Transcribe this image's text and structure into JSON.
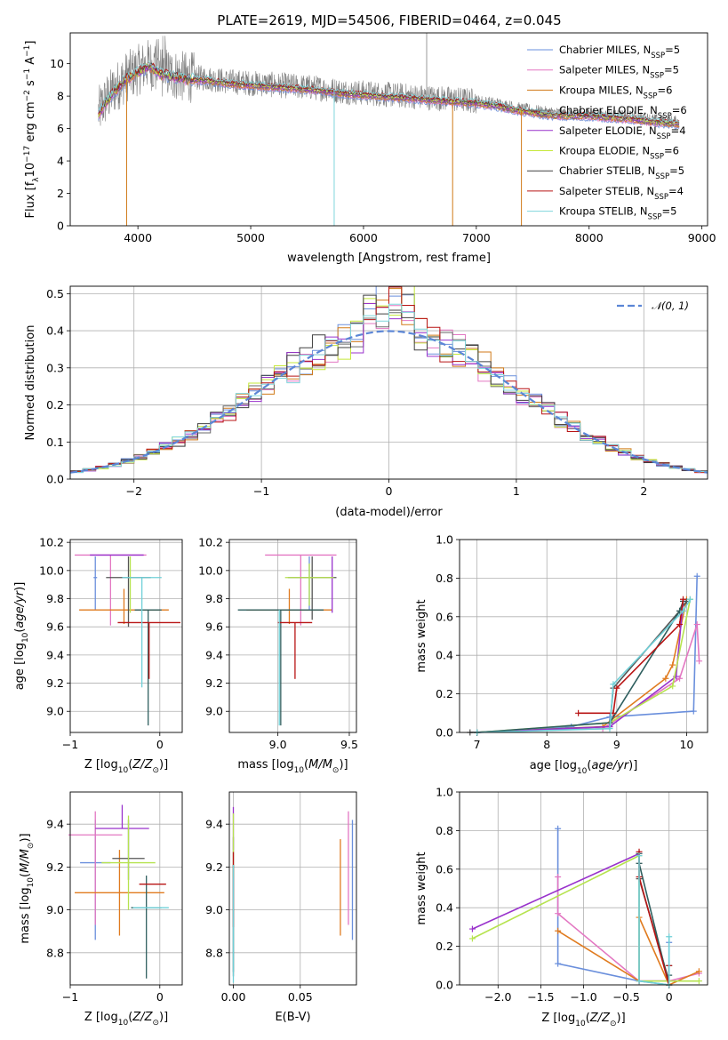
{
  "figure": {
    "title": "PLATE=2619, MJD=54506, FIBERID=0464, z=0.045"
  },
  "series_styles": [
    {
      "name": "Chabrier MILES",
      "nssp": "5",
      "color": "#6a8fdc",
      "panel_color": "#6a8fdc"
    },
    {
      "name": "Salpeter MILES",
      "nssp": "5",
      "color": "#e377c2",
      "panel_color": "#e377c2"
    },
    {
      "name": "Kroupa MILES",
      "nssp": "6",
      "color": "#d07a18",
      "panel_color": "#e07b1f"
    },
    {
      "name": "Chabrier ELODIE",
      "nssp": "6",
      "color": "#6b6b6b",
      "panel_color": "#555555"
    },
    {
      "name": "Salpeter ELODIE",
      "nssp": "4",
      "color": "#9932cc",
      "panel_color": "#9932cc"
    },
    {
      "name": "Kroupa ELODIE",
      "nssp": "6",
      "color": "#c5e83a",
      "panel_color": "#b6e34f"
    },
    {
      "name": "Chabrier STELIB",
      "nssp": "5",
      "color": "#404040",
      "panel_color": "#2f5f5f"
    },
    {
      "name": "Salpeter STELIB",
      "nssp": "4",
      "color": "#b81414",
      "panel_color": "#b81414"
    },
    {
      "name": "Kroupa STELIB",
      "nssp": "5",
      "color": "#7fd6dc",
      "panel_color": "#6fd0d8"
    }
  ],
  "chart_data": [
    {
      "id": "spectrum",
      "type": "line",
      "title": "PLATE=2619, MJD=54506, FIBERID=0464, z=0.045",
      "xlabel": "wavelength [Angstrom, rest frame]",
      "ylabel": "Flux [f_λ 10^-17 erg cm^-2 s^-1 A^-1]",
      "xlim": [
        3400,
        9050
      ],
      "ylim": [
        0,
        11.9
      ],
      "xticks": [
        4000,
        5000,
        6000,
        7000,
        8000,
        9000
      ],
      "yticks": [
        0,
        2,
        4,
        6,
        8,
        10
      ],
      "grid": false,
      "legend": "upper right",
      "data_flux_envelope": {
        "x": [
          3650,
          3700,
          3800,
          3900,
          4000,
          4100,
          4200,
          4400,
          4600,
          4800,
          5000,
          5200,
          5400,
          5600,
          5800,
          6000,
          6200,
          6400,
          6600,
          6800,
          7000,
          7200,
          7400,
          7600,
          7800,
          8000,
          8200,
          8400,
          8600,
          8800
        ],
        "y": [
          7.0,
          7.6,
          8.5,
          9.2,
          9.6,
          10.0,
          9.5,
          9.2,
          9.1,
          8.9,
          8.8,
          8.7,
          8.6,
          8.5,
          8.3,
          8.2,
          8.1,
          8.0,
          7.9,
          7.8,
          7.7,
          7.5,
          7.2,
          7.0,
          6.9,
          6.9,
          6.8,
          6.7,
          6.5,
          6.4
        ]
      },
      "spikes": [
        {
          "x": 3900,
          "y": 0
        },
        {
          "x": 5740,
          "y": 0
        },
        {
          "x": 6790,
          "y": 0
        },
        {
          "x": 7400,
          "y": 0
        },
        {
          "x": 6560,
          "y": 11.9
        }
      ]
    },
    {
      "id": "residual-histogram",
      "type": "histogram",
      "xlabel": "(data-model)/error",
      "ylabel": "Normed distribution",
      "xlim": [
        -2.5,
        2.5
      ],
      "ylim": [
        0,
        0.52
      ],
      "xticks": [
        -2,
        -1,
        0,
        1,
        2
      ],
      "yticks": [
        0.0,
        0.1,
        0.2,
        0.3,
        0.4,
        0.5
      ],
      "grid": true,
      "bin_width": 0.1,
      "reference_curve": {
        "label": "𝒩(0, 1)",
        "mean": 0,
        "sigma": 1,
        "style": "dashed",
        "color": "#5b86d6"
      }
    },
    {
      "id": "age-vs-Z",
      "type": "errorbar",
      "xlabel": "Z [log10(Z/Z⊙)]",
      "ylabel": "age [log10(age/yr)]",
      "xlim": [
        -1.0,
        0.25
      ],
      "ylim": [
        8.85,
        10.22
      ],
      "xticks": [
        -1,
        0
      ],
      "yticks": [
        9.0,
        9.2,
        9.4,
        9.6,
        9.8,
        10.0,
        10.2
      ],
      "grid": true,
      "points": [
        {
          "series": 0,
          "x": -0.72,
          "y": 9.95,
          "xerr": 0.02,
          "yerr_lo": 0.23,
          "yerr_hi": 0.15
        },
        {
          "series": 1,
          "x": -0.55,
          "y": 10.11,
          "xerr": 0.4,
          "yerr_lo": 0.5,
          "yerr_hi": 0.0
        },
        {
          "series": 2,
          "x": -0.4,
          "y": 9.72,
          "xerr": 0.5,
          "yerr_lo": 0.1,
          "yerr_hi": 0.15
        },
        {
          "series": 3,
          "x": -0.35,
          "y": 9.95,
          "xerr": 0.25,
          "yerr_lo": 0.35,
          "yerr_hi": 0.15
        },
        {
          "series": 4,
          "x": -0.48,
          "y": 10.11,
          "xerr": 0.3,
          "yerr_lo": 0.0,
          "yerr_hi": 0.0
        },
        {
          "series": 5,
          "x": -0.33,
          "y": 9.95,
          "xerr": 0.0,
          "yerr_lo": 0.25,
          "yerr_hi": 0.15
        },
        {
          "series": 6,
          "x": -0.13,
          "y": 9.72,
          "xerr": 0.15,
          "yerr_lo": 0.82,
          "yerr_hi": 0.0
        },
        {
          "series": 7,
          "x": -0.12,
          "y": 9.63,
          "xerr": 0.35,
          "yerr_lo": 0.4,
          "yerr_hi": 0.0
        },
        {
          "series": 8,
          "x": -0.2,
          "y": 9.95,
          "xerr": 0.22,
          "yerr_lo": 0.78,
          "yerr_hi": 0.0
        }
      ]
    },
    {
      "id": "age-vs-mass",
      "type": "errorbar",
      "xlabel": "mass [log10(M/M⊙)]",
      "ylabel": "",
      "xlim": [
        8.66,
        9.55
      ],
      "ylim": [
        8.85,
        10.22
      ],
      "xticks": [
        9.0,
        9.5
      ],
      "yticks": [
        9.0,
        9.2,
        9.4,
        9.6,
        9.8,
        10.0,
        10.2
      ],
      "grid": true,
      "points": [
        {
          "series": 0,
          "x": 9.22,
          "y": 9.95,
          "xerr": 0.0,
          "yerr_lo": 0.23,
          "yerr_hi": 0.15
        },
        {
          "series": 1,
          "x": 9.16,
          "y": 10.11,
          "xerr": 0.25,
          "yerr_lo": 0.5,
          "yerr_hi": 0.0
        },
        {
          "series": 2,
          "x": 9.08,
          "y": 9.72,
          "xerr": 0.3,
          "yerr_lo": 0.1,
          "yerr_hi": 0.15
        },
        {
          "series": 3,
          "x": 9.24,
          "y": 9.95,
          "xerr": 0.17,
          "yerr_lo": 0.3,
          "yerr_hi": 0.15
        },
        {
          "series": 4,
          "x": 9.38,
          "y": 9.9,
          "xerr": 0.0,
          "yerr_lo": 0.2,
          "yerr_hi": 0.2
        },
        {
          "series": 5,
          "x": 9.22,
          "y": 9.95,
          "xerr": 0.17,
          "yerr_lo": 0.2,
          "yerr_hi": 0.1
        },
        {
          "series": 6,
          "x": 9.02,
          "y": 9.72,
          "xerr": 0.3,
          "yerr_lo": 0.82,
          "yerr_hi": 0.0
        },
        {
          "series": 7,
          "x": 9.12,
          "y": 9.63,
          "xerr": 0.12,
          "yerr_lo": 0.4,
          "yerr_hi": 0.0
        },
        {
          "series": 8,
          "x": 9.01,
          "y": 9.72,
          "xerr": 0.0,
          "yerr_lo": 0.82,
          "yerr_hi": 0.0
        }
      ]
    },
    {
      "id": "mass-weight-vs-age",
      "type": "line",
      "xlabel": "age [log10(age/yr)]",
      "ylabel": "mass weight",
      "xlim": [
        6.75,
        10.3
      ],
      "ylim": [
        0,
        1.0
      ],
      "xticks": [
        7,
        8,
        9,
        10
      ],
      "yticks": [
        0.0,
        0.2,
        0.4,
        0.6,
        0.8,
        1.0
      ],
      "grid": true,
      "series": [
        {
          "series": 0,
          "x": [
            7.0,
            8.35,
            8.9,
            10.1,
            10.15
          ],
          "y": [
            0.0,
            0.03,
            0.08,
            0.11,
            0.81
          ]
        },
        {
          "series": 1,
          "x": [
            7.0,
            8.8,
            9.9,
            10.15,
            10.18
          ],
          "y": [
            0.0,
            0.02,
            0.28,
            0.56,
            0.37
          ]
        },
        {
          "series": 2,
          "x": [
            7.0,
            8.8,
            9.7,
            9.8,
            10.0
          ],
          "y": [
            0.0,
            0.03,
            0.28,
            0.35,
            0.69
          ]
        },
        {
          "series": 3,
          "x": [
            6.9,
            8.9,
            8.95,
            9.9,
            10.0
          ],
          "y": [
            0.0,
            0.03,
            0.23,
            0.63,
            0.68
          ]
        },
        {
          "series": 4,
          "x": [
            7.0,
            8.9,
            9.85,
            9.95
          ],
          "y": [
            0.0,
            0.03,
            0.29,
            0.68
          ]
        },
        {
          "series": 5,
          "x": [
            7.0,
            8.9,
            9.8,
            10.05
          ],
          "y": [
            0.0,
            0.05,
            0.24,
            0.69
          ]
        },
        {
          "series": 6,
          "x": [
            7.0,
            8.9,
            9.9,
            9.95
          ],
          "y": [
            0.0,
            0.05,
            0.63,
            0.68
          ]
        },
        {
          "series": 7,
          "x": [
            8.45,
            8.95,
            9.0,
            9.9,
            9.95
          ],
          "y": [
            0.1,
            0.1,
            0.23,
            0.56,
            0.69
          ]
        },
        {
          "series": 8,
          "x": [
            7.0,
            8.9,
            8.95,
            9.95,
            10.05
          ],
          "y": [
            0.0,
            0.02,
            0.25,
            0.63,
            0.69
          ]
        }
      ]
    },
    {
      "id": "mass-vs-Z",
      "type": "errorbar",
      "xlabel": "Z [log10(Z/Z⊙)]",
      "ylabel": "mass [log10(M/M⊙)]",
      "xlim": [
        -1.0,
        0.25
      ],
      "ylim": [
        8.65,
        9.55
      ],
      "xticks": [
        -1,
        0
      ],
      "yticks": [
        8.8,
        9.0,
        9.2,
        9.4
      ],
      "grid": true,
      "points": [
        {
          "series": 0,
          "x": -0.72,
          "y": 9.22,
          "xerr": 0.17,
          "yerr_lo": 0.36,
          "yerr_hi": 0.2
        },
        {
          "series": 1,
          "x": -0.72,
          "y": 9.35,
          "xerr": 0.3,
          "yerr_lo": 0.42,
          "yerr_hi": 0.11
        },
        {
          "series": 2,
          "x": -0.45,
          "y": 9.08,
          "xerr": 0.5,
          "yerr_lo": 0.2,
          "yerr_hi": 0.2
        },
        {
          "series": 3,
          "x": -0.35,
          "y": 9.24,
          "xerr": 0.18,
          "yerr_lo": 0.1,
          "yerr_hi": 0.18
        },
        {
          "series": 4,
          "x": -0.42,
          "y": 9.38,
          "xerr": 0.3,
          "yerr_lo": 0.0,
          "yerr_hi": 0.11
        },
        {
          "series": 5,
          "x": -0.35,
          "y": 9.22,
          "xerr": 0.3,
          "yerr_lo": 0.22,
          "yerr_hi": 0.22
        },
        {
          "series": 6,
          "x": -0.15,
          "y": 9.01,
          "xerr": 0.17,
          "yerr_lo": 0.33,
          "yerr_hi": 0.15
        },
        {
          "series": 7,
          "x": -0.08,
          "y": 9.12,
          "xerr": 0.15,
          "yerr_lo": 0.0,
          "yerr_hi": 0.0
        },
        {
          "series": 8,
          "x": -0.1,
          "y": 9.01,
          "xerr": 0.2,
          "yerr_lo": 0.0,
          "yerr_hi": 0.0
        }
      ]
    },
    {
      "id": "mass-vs-EBV",
      "type": "errorbar",
      "xlabel": "E(B-V)",
      "ylabel": "",
      "xlim": [
        -0.003,
        0.092
      ],
      "ylim": [
        8.65,
        9.55
      ],
      "xticks": [
        0.0,
        0.05
      ],
      "yticks": [
        8.8,
        9.0,
        9.2,
        9.4
      ],
      "grid": true,
      "points": [
        {
          "series": 0,
          "x": 0.089,
          "y": 9.22,
          "xerr": 0.0,
          "yerr_lo": 0.36,
          "yerr_hi": 0.2
        },
        {
          "series": 1,
          "x": 0.086,
          "y": 9.35,
          "xerr": 0.0,
          "yerr_lo": 0.42,
          "yerr_hi": 0.11
        },
        {
          "series": 2,
          "x": 0.08,
          "y": 9.08,
          "xerr": 0.0,
          "yerr_lo": 0.2,
          "yerr_hi": 0.25
        },
        {
          "series": 3,
          "x": 0.0,
          "y": 9.24,
          "xerr": 0.0,
          "yerr_lo": 0.55,
          "yerr_hi": 0.1
        },
        {
          "series": 4,
          "x": 0.0,
          "y": 9.38,
          "xerr": 0.0,
          "yerr_lo": 0.1,
          "yerr_hi": 0.1
        },
        {
          "series": 5,
          "x": 0.0,
          "y": 9.35,
          "xerr": 0.0,
          "yerr_lo": 0.2,
          "yerr_hi": 0.1
        },
        {
          "series": 6,
          "x": 0.0,
          "y": 9.01,
          "xerr": 0.0,
          "yerr_lo": 0.3,
          "yerr_hi": 0.2
        },
        {
          "series": 7,
          "x": 0.0,
          "y": 9.12,
          "xerr": 0.0,
          "yerr_lo": 0.2,
          "yerr_hi": 0.15
        },
        {
          "series": 8,
          "x": 0.0,
          "y": 9.01,
          "xerr": 0.0,
          "yerr_lo": 0.35,
          "yerr_hi": 0.2
        }
      ]
    },
    {
      "id": "mass-weight-vs-Z",
      "type": "line",
      "xlabel": "Z [log10(Z/Z⊙)]",
      "ylabel": "mass weight",
      "xlim": [
        -2.45,
        0.45
      ],
      "ylim": [
        0,
        1.0
      ],
      "xticks": [
        -2.0,
        -1.5,
        -1.0,
        -0.5,
        0.0
      ],
      "yticks": [
        0.0,
        0.2,
        0.4,
        0.6,
        0.8,
        1.0
      ],
      "grid": true,
      "series": [
        {
          "series": 0,
          "x": [
            -1.3,
            -1.3,
            -0.35,
            0.0,
            0.0
          ],
          "y": [
            0.81,
            0.11,
            0.02,
            0.0,
            0.22
          ]
        },
        {
          "series": 1,
          "x": [
            -1.3,
            -1.3,
            -0.35,
            0.0,
            0.35
          ],
          "y": [
            0.56,
            0.37,
            0.02,
            0.02,
            0.06
          ]
        },
        {
          "series": 2,
          "x": [
            -1.3,
            -0.35,
            -0.35,
            0.0,
            0.35
          ],
          "y": [
            0.28,
            0.02,
            0.35,
            0.0,
            0.07
          ]
        },
        {
          "series": 3,
          "x": [
            -0.35,
            -0.35,
            -0.35,
            0.0,
            0.0
          ],
          "y": [
            0.68,
            0.63,
            0.55,
            0.02,
            0.1
          ]
        },
        {
          "series": 4,
          "x": [
            -2.3,
            -0.35,
            -0.35,
            0.0
          ],
          "y": [
            0.29,
            0.68,
            0.02,
            0.02
          ]
        },
        {
          "series": 5,
          "x": [
            -2.3,
            -0.35,
            -0.35,
            0.0,
            0.35
          ],
          "y": [
            0.24,
            0.67,
            0.02,
            0.02,
            0.02
          ]
        },
        {
          "series": 6,
          "x": [
            -0.35,
            -0.35,
            0.0,
            0.0
          ],
          "y": [
            0.68,
            0.63,
            0.0,
            0.05
          ]
        },
        {
          "series": 7,
          "x": [
            -0.35,
            -0.35,
            0.0,
            0.0
          ],
          "y": [
            0.69,
            0.56,
            0.0,
            0.1
          ]
        },
        {
          "series": 8,
          "x": [
            -0.35,
            -0.35,
            0.0,
            0.0
          ],
          "y": [
            0.67,
            0.02,
            0.0,
            0.25
          ]
        }
      ]
    }
  ]
}
